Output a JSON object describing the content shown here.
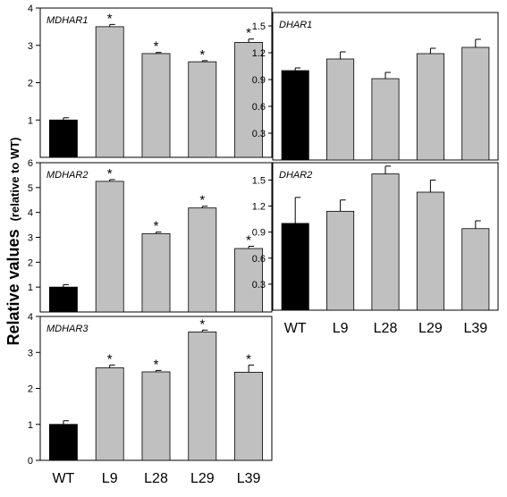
{
  "figure": {
    "ylabel_main": "Relative values",
    "ylabel_sub": "(relative to WT)"
  },
  "colors": {
    "wt_bar": "#000000",
    "line_bar": "#c0c0c0",
    "bar_edge": "#000000",
    "axis": "#000000",
    "background": "#ffffff"
  },
  "chart_data": [
    {
      "id": "mdhar1",
      "type": "bar",
      "title": "MDHAR1",
      "categories": [
        "WT",
        "L9",
        "L28",
        "L29",
        "L39"
      ],
      "values": [
        1.0,
        3.5,
        2.78,
        2.56,
        3.08
      ],
      "errors": [
        0.06,
        0.06,
        0.03,
        0.03,
        0.09
      ],
      "significant": [
        false,
        true,
        true,
        true,
        true
      ],
      "ylim": [
        0,
        4
      ],
      "yticks": [
        {
          "value": 1,
          "label": "1"
        },
        {
          "value": 2,
          "label": "2"
        },
        {
          "value": 3,
          "label": "3"
        },
        {
          "value": 4,
          "label": "4"
        }
      ],
      "show_xticklabels": false
    },
    {
      "id": "mdhar2",
      "type": "bar",
      "title": "MDHAR2",
      "categories": [
        "WT",
        "L9",
        "L28",
        "L29",
        "L39"
      ],
      "values": [
        1.0,
        5.25,
        3.15,
        4.18,
        2.55
      ],
      "errors": [
        0.1,
        0.07,
        0.06,
        0.07,
        0.09
      ],
      "significant": [
        false,
        true,
        true,
        true,
        true
      ],
      "ylim": [
        0,
        6
      ],
      "yticks": [
        {
          "value": 1,
          "label": "1"
        },
        {
          "value": 2,
          "label": "2"
        },
        {
          "value": 3,
          "label": "3"
        },
        {
          "value": 4,
          "label": "4"
        },
        {
          "value": 5,
          "label": "5"
        },
        {
          "value": 6,
          "label": "6"
        }
      ],
      "show_xticklabels": false
    },
    {
      "id": "mdhar3",
      "type": "bar",
      "title": "MDHAR3",
      "categories": [
        "WT",
        "L9",
        "L28",
        "L29",
        "L39"
      ],
      "values": [
        1.0,
        2.57,
        2.46,
        3.57,
        2.45
      ],
      "errors": [
        0.1,
        0.08,
        0.04,
        0.05,
        0.2
      ],
      "significant": [
        false,
        true,
        true,
        true,
        true
      ],
      "ylim": [
        0,
        4
      ],
      "yticks": [
        {
          "value": 0,
          "label": "0"
        },
        {
          "value": 1,
          "label": "1"
        },
        {
          "value": 2,
          "label": "2"
        },
        {
          "value": 3,
          "label": "3"
        },
        {
          "value": 4,
          "label": "4"
        }
      ],
      "show_xticklabels": true
    },
    {
      "id": "dhar1",
      "type": "bar",
      "title": "DHAR1",
      "categories": [
        "WT",
        "L9",
        "L28",
        "L29",
        "L39"
      ],
      "values": [
        1.0,
        1.13,
        0.91,
        1.19,
        1.26
      ],
      "errors": [
        0.03,
        0.08,
        0.07,
        0.06,
        0.09
      ],
      "significant": [
        false,
        false,
        false,
        false,
        false
      ],
      "ylim": [
        0,
        1.65
      ],
      "yticks": [
        {
          "value": 0.3,
          "label": "0.3"
        },
        {
          "value": 0.6,
          "label": "0.6"
        },
        {
          "value": 0.9,
          "label": "0.9"
        },
        {
          "value": 1.2,
          "label": "1.2"
        },
        {
          "value": 1.5,
          "label": "1.5"
        }
      ],
      "show_xticklabels": false
    },
    {
      "id": "dhar2",
      "type": "bar",
      "title": "DHAR2",
      "categories": [
        "WT",
        "L9",
        "L28",
        "L29",
        "L39"
      ],
      "values": [
        1.0,
        1.14,
        1.57,
        1.36,
        0.94
      ],
      "errors": [
        0.3,
        0.13,
        0.09,
        0.14,
        0.09
      ],
      "significant": [
        false,
        false,
        false,
        false,
        false
      ],
      "ylim": [
        0,
        1.7
      ],
      "yticks": [
        {
          "value": 0.3,
          "label": "0.3"
        },
        {
          "value": 0.6,
          "label": "0.6"
        },
        {
          "value": 0.9,
          "label": "0.9"
        },
        {
          "value": 1.2,
          "label": "1.2"
        },
        {
          "value": 1.5,
          "label": "1.5"
        }
      ],
      "show_xticklabels": true
    }
  ]
}
